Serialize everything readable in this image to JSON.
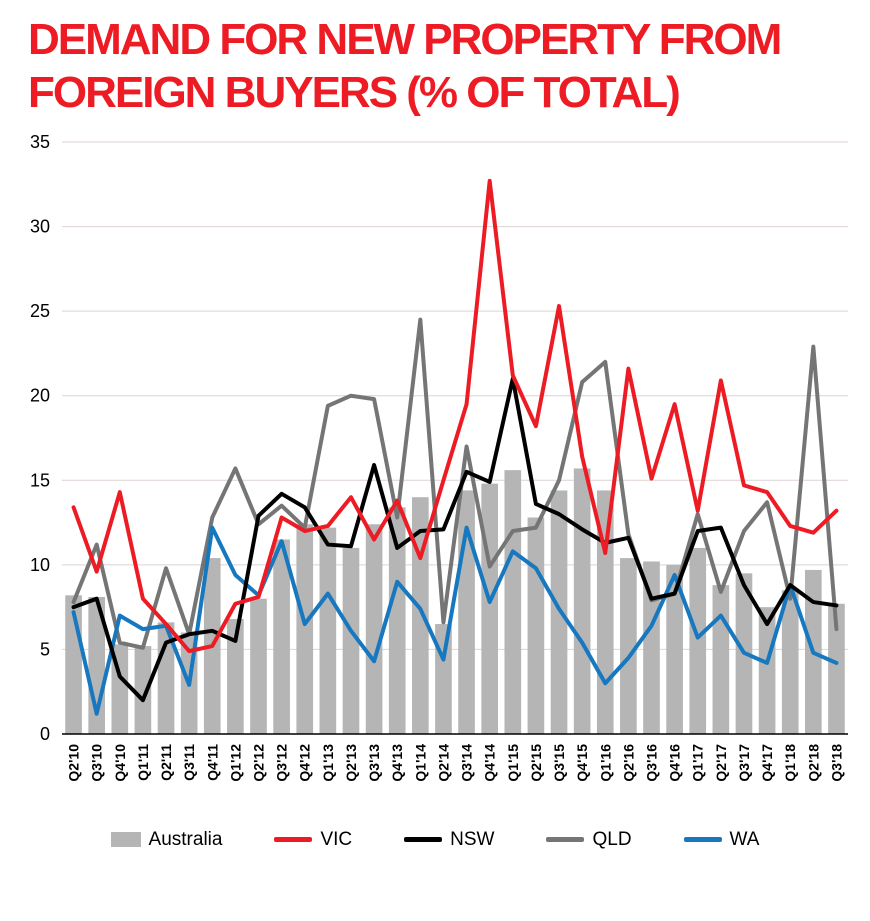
{
  "title": {
    "line1": "DEMAND FOR NEW PROPERTY FROM",
    "line2": "FOREIGN BUYERS (% OF TOTAL)"
  },
  "colors": {
    "title_red": "#ed1c24",
    "bar_gray": "#b5b5b5",
    "vic_red": "#ed1c24",
    "nsw_black": "#000000",
    "qld_gray": "#757575",
    "wa_blue": "#1878bf",
    "grid": "#ddd2d2",
    "axis": "#000000"
  },
  "chart_data": {
    "type": "combo-bar-line",
    "title": "Demand for new property from foreign buyers (% of total)",
    "xlabel": "",
    "ylabel": "",
    "ylim": [
      0,
      35
    ],
    "yticks": [
      0,
      5,
      10,
      15,
      20,
      25,
      30,
      35
    ],
    "grid": true,
    "legend_position": "bottom",
    "categories": [
      "Q2'10",
      "Q3'10",
      "Q4'10",
      "Q1'11",
      "Q2'11",
      "Q3'11",
      "Q4'11",
      "Q1'12",
      "Q2'12",
      "Q3'12",
      "Q4'12",
      "Q1'13",
      "Q2'13",
      "Q3'13",
      "Q4'13",
      "Q1'14",
      "Q2'14",
      "Q3'14",
      "Q4'14",
      "Q1'15",
      "Q2'15",
      "Q3'15",
      "Q4'15",
      "Q1'16",
      "Q2'16",
      "Q3'16",
      "Q4'16",
      "Q1'17",
      "Q2'17",
      "Q3'17",
      "Q4'17",
      "Q1'18",
      "Q2'18",
      "Q3'18"
    ],
    "bar_series": {
      "name": "Australia",
      "color": "#b5b5b5",
      "values": [
        8.2,
        8.1,
        5.3,
        5.2,
        6.6,
        6.0,
        10.4,
        6.8,
        8.0,
        11.5,
        12.4,
        12.2,
        11.0,
        12.4,
        13.4,
        14.0,
        6.5,
        14.4,
        14.8,
        15.6,
        12.8,
        14.4,
        15.7,
        14.4,
        10.4,
        10.2,
        10.0,
        11.0,
        8.8,
        9.5,
        7.5,
        8.5,
        9.7,
        7.7
      ]
    },
    "line_series": [
      {
        "name": "VIC",
        "color": "#ed1c24",
        "values": [
          13.4,
          9.6,
          14.3,
          8.0,
          6.5,
          4.9,
          5.2,
          7.7,
          8.1,
          12.8,
          12.0,
          12.3,
          14.0,
          11.5,
          13.8,
          10.4,
          15.0,
          19.5,
          32.7,
          21.2,
          18.2,
          25.3,
          16.4,
          10.7,
          21.6,
          15.1,
          19.5,
          13.2,
          20.9,
          14.7,
          14.3,
          12.3,
          11.9,
          13.2
        ]
      },
      {
        "name": "NSW",
        "color": "#000000",
        "values": [
          7.5,
          8.0,
          3.4,
          2.0,
          5.4,
          5.9,
          6.1,
          5.5,
          12.9,
          14.2,
          13.4,
          11.2,
          11.1,
          15.9,
          11.0,
          12.0,
          12.1,
          15.5,
          14.9,
          21.0,
          13.6,
          13.0,
          12.1,
          11.3,
          11.6,
          8.0,
          8.3,
          12.0,
          12.2,
          8.8,
          6.5,
          8.8,
          7.8,
          7.6
        ]
      },
      {
        "name": "QLD",
        "color": "#757575",
        "values": [
          7.8,
          11.2,
          5.4,
          5.1,
          9.8,
          5.9,
          12.8,
          15.7,
          12.4,
          13.5,
          12.2,
          19.4,
          20.0,
          19.8,
          12.8,
          24.5,
          6.6,
          17.0,
          9.9,
          12.0,
          12.2,
          15.0,
          20.8,
          22.0,
          11.8,
          7.9,
          8.3,
          13.0,
          8.4,
          12.0,
          13.7,
          8.0,
          22.9,
          6.2
        ]
      },
      {
        "name": "WA",
        "color": "#1878bf",
        "values": [
          7.2,
          1.2,
          7.0,
          6.2,
          6.4,
          2.9,
          12.2,
          9.4,
          8.2,
          11.4,
          6.5,
          8.3,
          6.1,
          4.3,
          9.0,
          7.4,
          4.4,
          12.2,
          7.8,
          10.8,
          9.8,
          7.4,
          5.4,
          3.0,
          4.5,
          6.4,
          9.4,
          5.7,
          7.0,
          4.8,
          4.2,
          8.8,
          4.8,
          4.2
        ]
      }
    ]
  },
  "legend": {
    "australia": "Australia",
    "vic": "VIC",
    "nsw": "NSW",
    "qld": "QLD",
    "wa": "WA"
  }
}
